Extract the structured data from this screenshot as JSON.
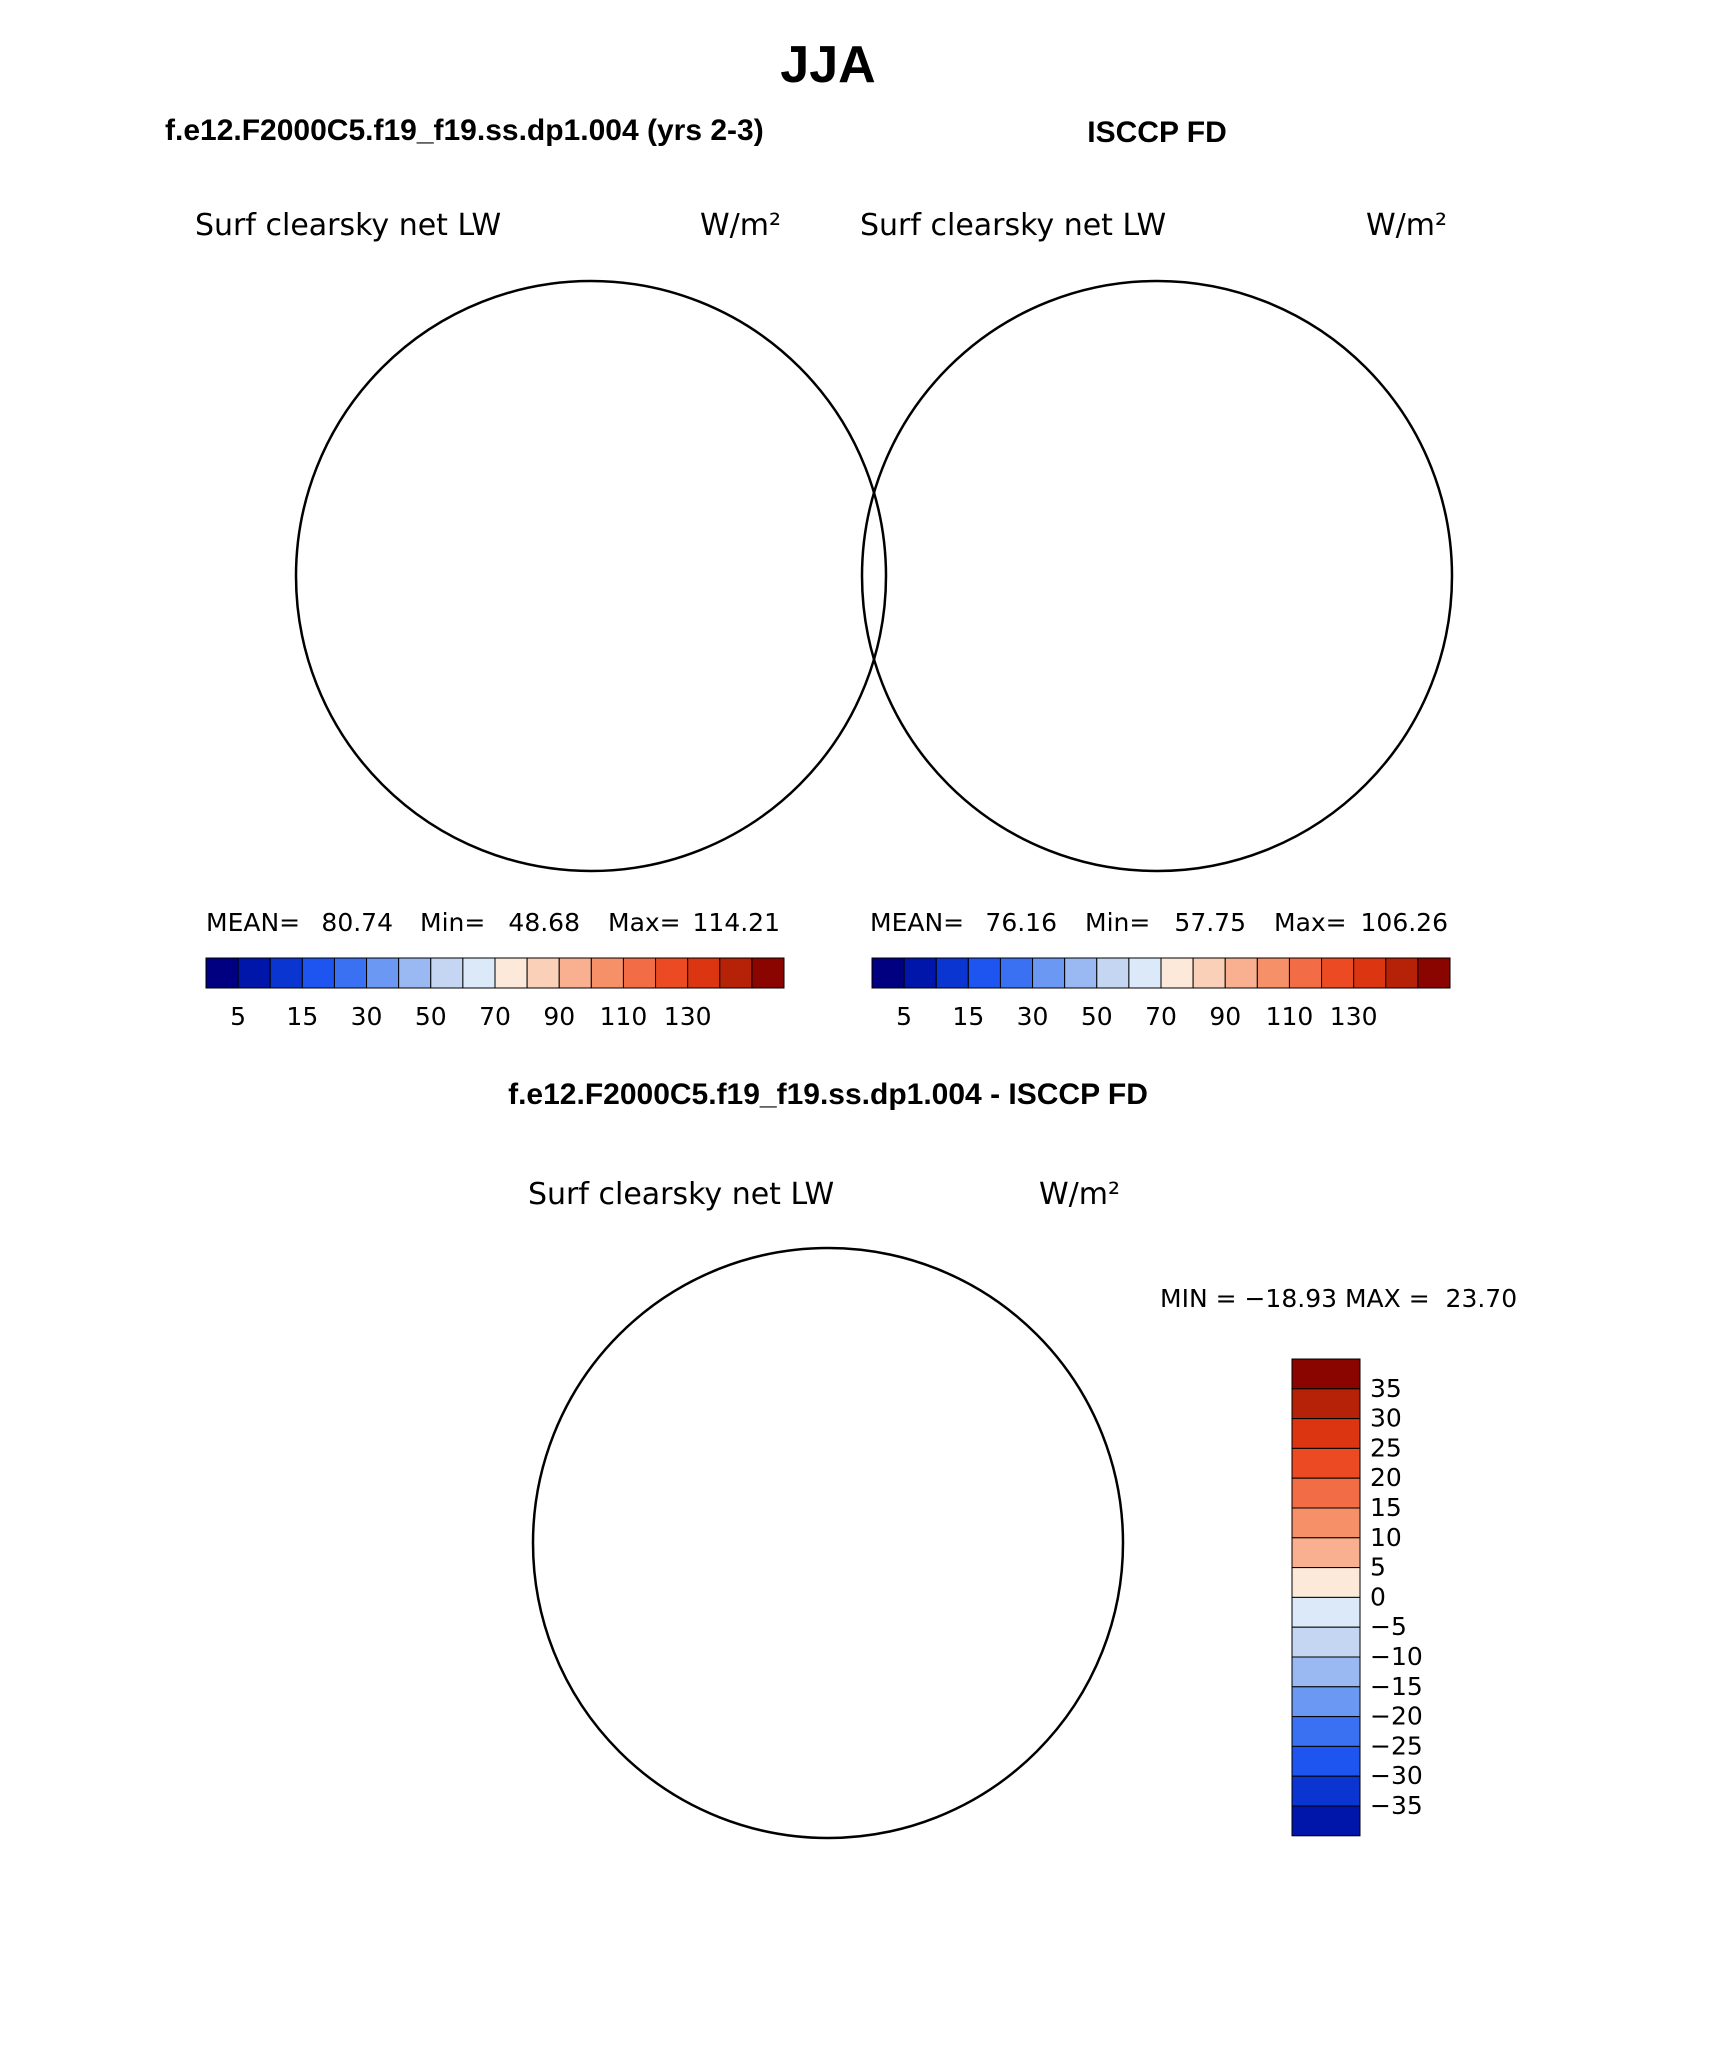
{
  "title": "JJA",
  "panels": [
    {
      "id": "model",
      "heading": "f.e12.F2000C5.f19_f19.ss.dp1.004 (yrs 2-3)",
      "variable": "Surf clearsky net LW",
      "units": "W/m²",
      "mean_label": "MEAN=",
      "mean": "80.74",
      "min_label": "Min=",
      "min": "48.68",
      "max_label": "Max=",
      "max": "114.21"
    },
    {
      "id": "obs",
      "heading": "ISCCP FD",
      "variable": "Surf clearsky net LW",
      "units": "W/m²",
      "mean_label": "MEAN=",
      "mean": "76.16",
      "min_label": "Min=",
      "min": "57.75",
      "max_label": "Max=",
      "max": "106.26"
    }
  ],
  "diff_panel": {
    "heading": "f.e12.F2000C5.f19_f19.ss.dp1.004 - ISCCP FD",
    "variable": "Surf clearsky net LW",
    "units": "W/m²",
    "stats": "MIN = −18.93 MAX =  23.70"
  },
  "colorbar_abs": {
    "colors": [
      "#000080",
      "#0015aa",
      "#0a35d0",
      "#1e55f0",
      "#3a70f2",
      "#6a98f2",
      "#9ab8f2",
      "#c4d6f2",
      "#dce9f8",
      "#fde9da",
      "#fbd0b8",
      "#f8b090",
      "#f59068",
      "#f26d45",
      "#ec4a22",
      "#db3512",
      "#b52208",
      "#8a0500"
    ],
    "tick_labels": [
      "5",
      "15",
      "30",
      "50",
      "70",
      "90",
      "110",
      "130"
    ]
  },
  "colorbar_diff": {
    "colors": [
      "#8a0500",
      "#b52208",
      "#db3512",
      "#ec4a22",
      "#f26d45",
      "#f59068",
      "#f8b090",
      "#fde9da",
      "#dce9f8",
      "#c4d6f2",
      "#9ab8f2",
      "#6a98f2",
      "#3a70f2",
      "#1e55f0",
      "#0a35d0",
      "#0015aa"
    ],
    "tick_labels": [
      "35",
      "30",
      "25",
      "20",
      "15",
      "10",
      "5",
      "0",
      "−5",
      "−10",
      "−15",
      "−20",
      "−25",
      "−30",
      "−35"
    ]
  }
}
